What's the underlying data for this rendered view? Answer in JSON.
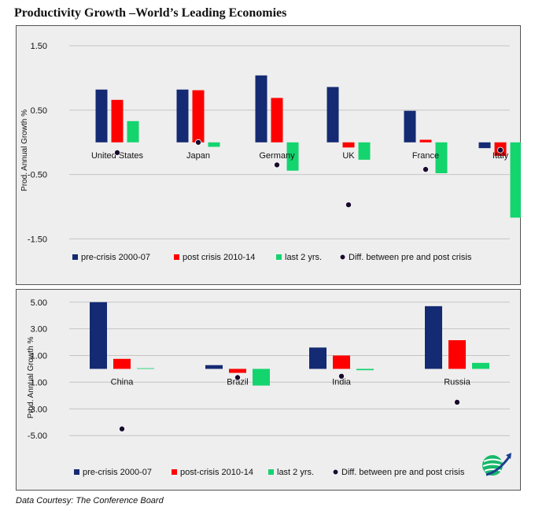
{
  "page": {
    "title": "Productivity Growth –World’s Leading Economies",
    "source": "Data Courtesy: The Conference Board"
  },
  "colors": {
    "pre": "#142a73",
    "post": "#ff0000",
    "last2": "#14d46e",
    "diff_marker": "#1a0a2e",
    "panel_bg": "#eeeeee",
    "grid": "#c4c4c4"
  },
  "chart_data": [
    {
      "type": "bar",
      "categories": [
        "United States",
        "Japan",
        "Germany",
        "UK",
        "France",
        "Italy"
      ],
      "ylabel": "Prod. Annual Growth %",
      "ylim": [
        -1.85,
        1.6
      ],
      "yticks": [
        "1.50",
        "0.50",
        "-0.50",
        "-1.50"
      ],
      "yticks_values": [
        1.5,
        0.5,
        -0.5,
        -1.5
      ],
      "grid": true,
      "legend_position": "bottom",
      "series": [
        {
          "name": "pre-crisis 2000-07",
          "values": [
            0.82,
            0.82,
            1.04,
            0.86,
            0.49,
            -0.09
          ]
        },
        {
          "name": "post crisis 2010-14",
          "values": [
            0.66,
            0.81,
            0.69,
            -0.08,
            0.04,
            -0.21
          ]
        },
        {
          "name": "last 2 yrs.",
          "values": [
            0.33,
            -0.07,
            -0.44,
            -0.27,
            -0.48,
            -1.17
          ]
        }
      ],
      "markers": {
        "name": "Diff. between pre and post crisis",
        "values": [
          -0.16,
          0.0,
          -0.35,
          -0.97,
          -0.42,
          -0.12
        ]
      }
    },
    {
      "type": "bar",
      "categories": [
        "China",
        "Brazil",
        "India",
        "Russia"
      ],
      "ylabel": "Prod. Annual Growth %",
      "ylim": [
        -6.7,
        5.4
      ],
      "yticks": [
        "5.00",
        "3.00",
        "1.00",
        "-1.00",
        "-3.00",
        "-5.00"
      ],
      "yticks_values": [
        5,
        3,
        1,
        -1,
        -3,
        -5
      ],
      "grid": true,
      "legend_position": "bottom",
      "series": [
        {
          "name": "pre-crisis 2000-07",
          "values": [
            5.0,
            0.28,
            1.6,
            4.7
          ]
        },
        {
          "name": "post-crisis 2010-14",
          "values": [
            0.75,
            -0.3,
            1.0,
            2.15
          ]
        },
        {
          "name": "last 2 yrs.",
          "values": [
            0.05,
            -1.25,
            -0.1,
            0.45
          ]
        }
      ],
      "markers": {
        "name": "Diff. between pre and post crisis",
        "values": [
          -4.5,
          -0.65,
          -0.55,
          -2.5
        ]
      }
    }
  ]
}
